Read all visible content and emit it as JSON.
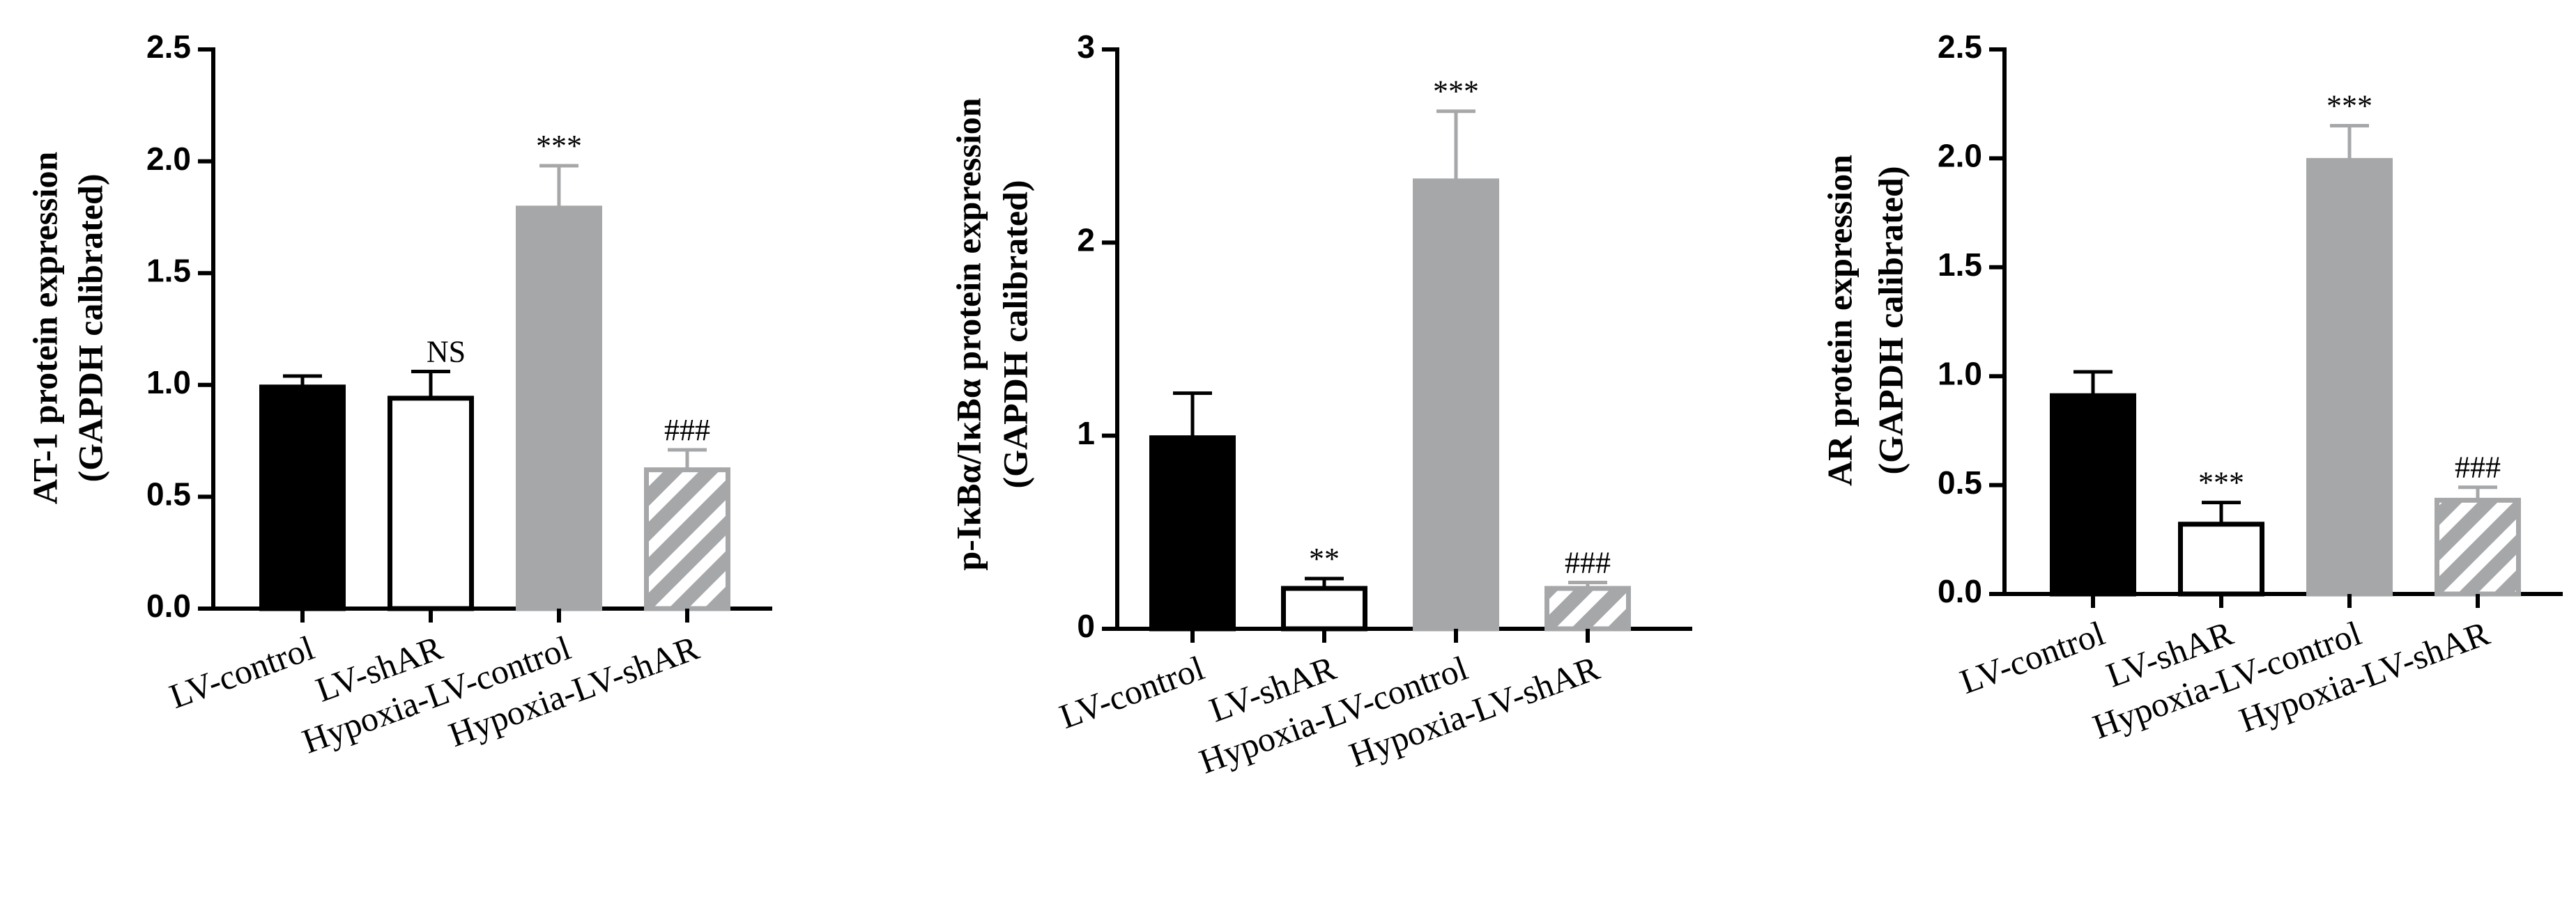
{
  "chart_data": [
    {
      "type": "bar",
      "ylabel": [
        "AT-1 protein expression",
        "(GAPDH calibrated)"
      ],
      "categories": [
        "LV-control",
        "LV-shAR",
        "Hypoxia-LV-control",
        "Hypoxia-LV-shAR"
      ],
      "values": [
        1.0,
        0.95,
        1.8,
        0.63
      ],
      "errors": [
        0.04,
        0.11,
        0.18,
        0.08
      ],
      "annotations": [
        null,
        "NS",
        "***",
        "###"
      ],
      "colors": [
        "#000000",
        "#ffffff",
        "#a6a7a9",
        "#a6a7a9"
      ],
      "edge_colors": [
        "#000000",
        "#000000",
        "#a6a7a9",
        "#a6a7a9"
      ],
      "patterns": [
        null,
        null,
        null,
        "hatch"
      ],
      "ylim": [
        0,
        2.5
      ],
      "yticks": [
        {
          "value": 0,
          "label": "0.0"
        },
        0.5,
        {
          "value": 1,
          "label": "1.0"
        },
        1.5,
        {
          "value": 2,
          "label": "2.0"
        },
        2.5
      ]
    },
    {
      "type": "bar",
      "ylabel": [
        "p-IκBα/IκBα protein expression",
        "(GAPDH calibrated)"
      ],
      "categories": [
        "LV-control",
        "LV-shAR",
        "Hypoxia-LV-control",
        "Hypoxia-LV-shAR"
      ],
      "values": [
        1.0,
        0.22,
        2.33,
        0.22
      ],
      "errors": [
        0.22,
        0.04,
        0.35,
        0.02
      ],
      "annotations": [
        null,
        "**",
        "***",
        "###"
      ],
      "colors": [
        "#000000",
        "#ffffff",
        "#a6a7a9",
        "#a6a7a9"
      ],
      "edge_colors": [
        "#000000",
        "#000000",
        "#a6a7a9",
        "#a6a7a9"
      ],
      "patterns": [
        null,
        null,
        null,
        "hatch"
      ],
      "ylim": [
        0,
        3
      ],
      "yticks": [
        0,
        1,
        2,
        3
      ]
    },
    {
      "type": "bar",
      "ylabel": [
        "AR protein expression",
        "(GAPDH calibrated)"
      ],
      "categories": [
        "LV-control",
        "LV-shAR",
        "Hypoxia-LV-control",
        "Hypoxia-LV-shAR"
      ],
      "values": [
        0.92,
        0.33,
        2.0,
        0.44
      ],
      "errors": [
        0.1,
        0.09,
        0.15,
        0.05
      ],
      "annotations": [
        null,
        "***",
        "***",
        "###"
      ],
      "colors": [
        "#000000",
        "#ffffff",
        "#a6a7a9",
        "#a6a7a9"
      ],
      "edge_colors": [
        "#000000",
        "#000000",
        "#a6a7a9",
        "#a6a7a9"
      ],
      "patterns": [
        null,
        null,
        null,
        "hatch"
      ],
      "ylim": [
        0,
        2.5
      ],
      "yticks": [
        {
          "value": 0,
          "label": "0.0"
        },
        0.5,
        {
          "value": 1,
          "label": "1.0"
        },
        1.5,
        {
          "value": 2,
          "label": "2.0"
        },
        2.5
      ]
    }
  ]
}
